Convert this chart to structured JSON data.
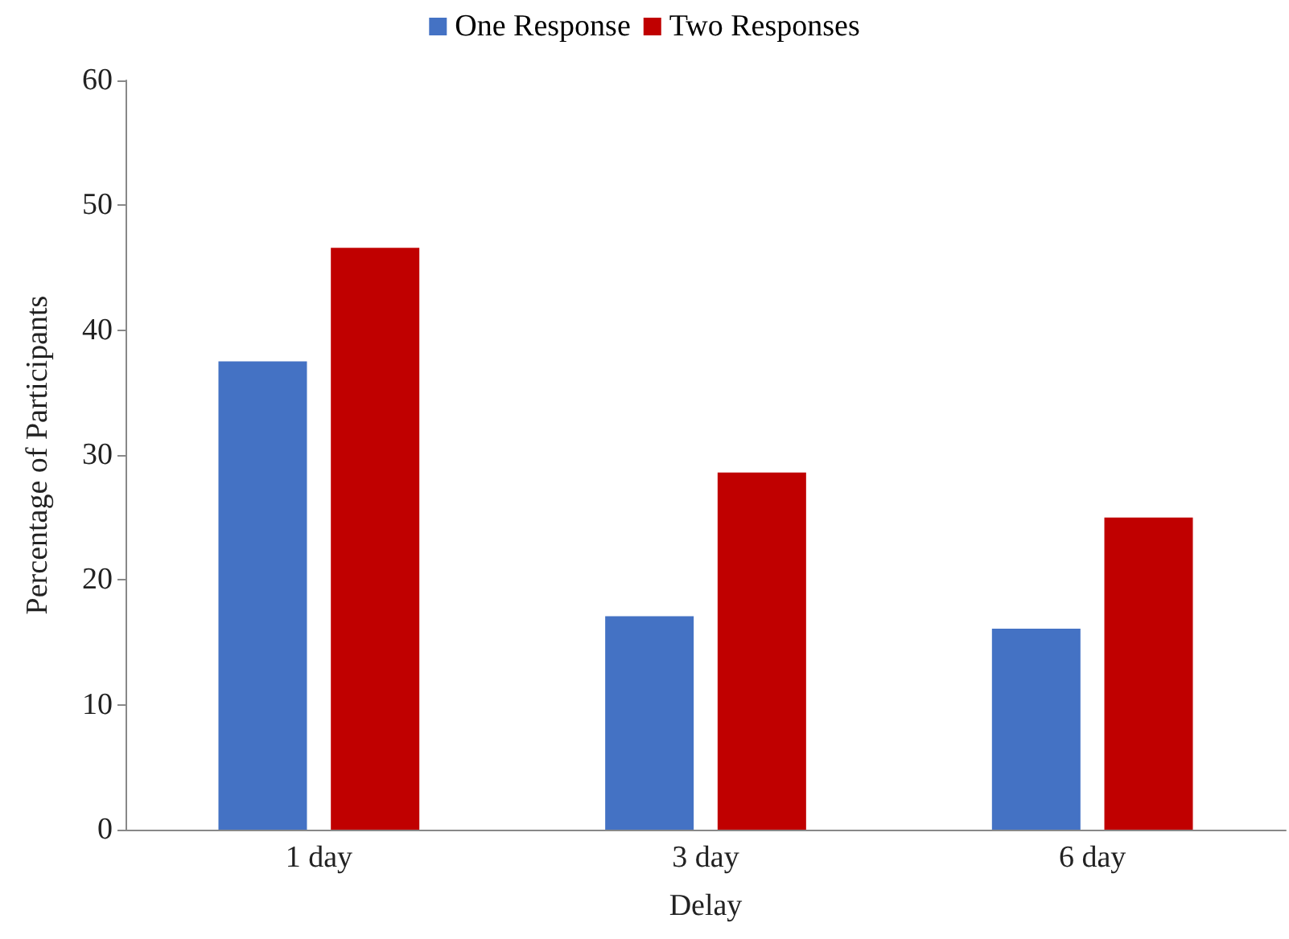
{
  "chart_data": {
    "type": "bar",
    "xlabel": "Delay",
    "ylabel": "Percentage of Participants",
    "categories": [
      "1 day",
      "3 day",
      "6 day"
    ],
    "series": [
      {
        "name": "One Response",
        "color": "#4472c4",
        "values": [
          37.5,
          17.1,
          16.1
        ]
      },
      {
        "name": "Two Responses",
        "color": "#c00000",
        "values": [
          46.6,
          28.6,
          25.0
        ]
      }
    ],
    "ylim": [
      0,
      60
    ],
    "yticks": [
      0,
      10,
      20,
      30,
      40,
      50,
      60
    ],
    "grid": false,
    "legend": "top"
  }
}
